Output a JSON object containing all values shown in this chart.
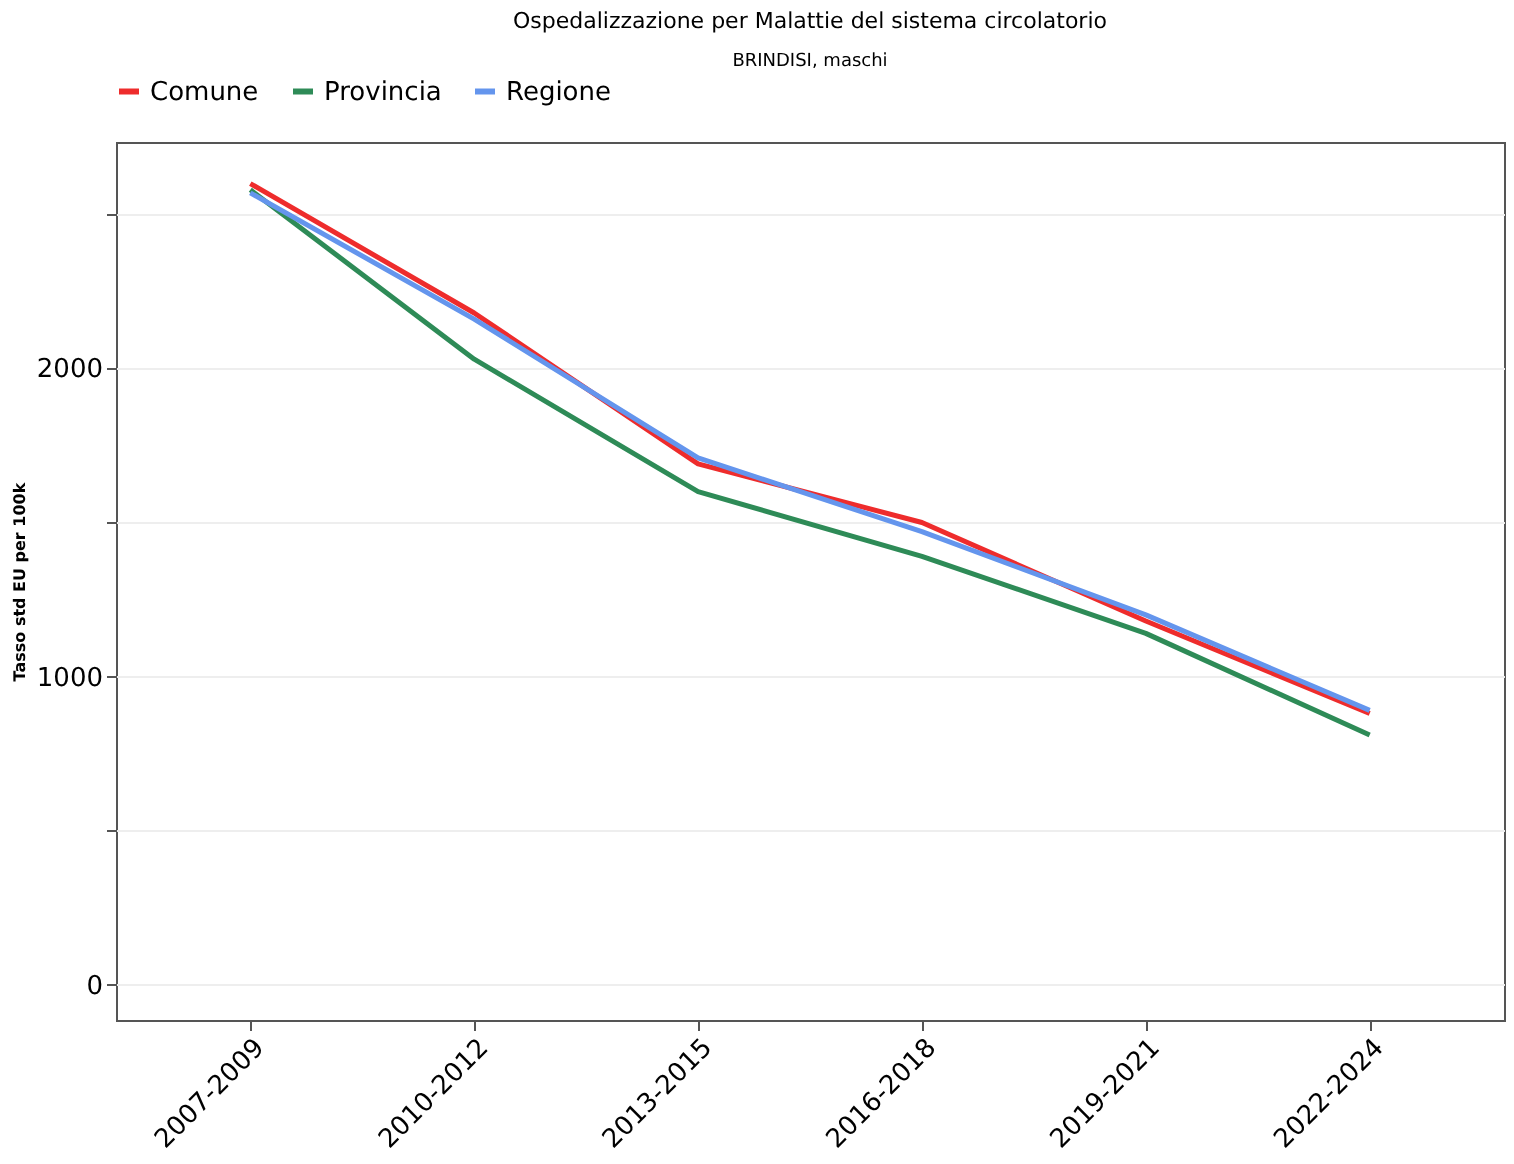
{
  "chart_data": {
    "type": "line",
    "title": "Ospedalizzazione per Malattie del sistema circolatorio",
    "subtitle": "BRINDISI, maschi",
    "ylabel": "Tasso std EU per 100k",
    "categories": [
      "2007-2009",
      "2010-2012",
      "2013-2015",
      "2016-2018",
      "2019-2021",
      "2022-2024"
    ],
    "series": [
      {
        "name": "Comune",
        "color": "#ee2c2c",
        "values": [
          2600,
          2180,
          1690,
          1500,
          1180,
          880
        ]
      },
      {
        "name": "Provincia",
        "color": "#2e8b57",
        "values": [
          2580,
          2030,
          1600,
          1390,
          1140,
          810
        ]
      },
      {
        "name": "Regione",
        "color": "#6495ed",
        "values": [
          2570,
          2160,
          1710,
          1470,
          1200,
          890
        ]
      }
    ],
    "ylim": [
      -115,
      2735
    ],
    "yticks": [
      0,
      {
        "value": 500,
        "label": null
      },
      1000,
      {
        "value": 1500,
        "label": null
      },
      2000,
      {
        "value": 2500,
        "label": null
      }
    ],
    "grid": "y",
    "legend": "top",
    "line_style": "solid",
    "marker": "none"
  }
}
